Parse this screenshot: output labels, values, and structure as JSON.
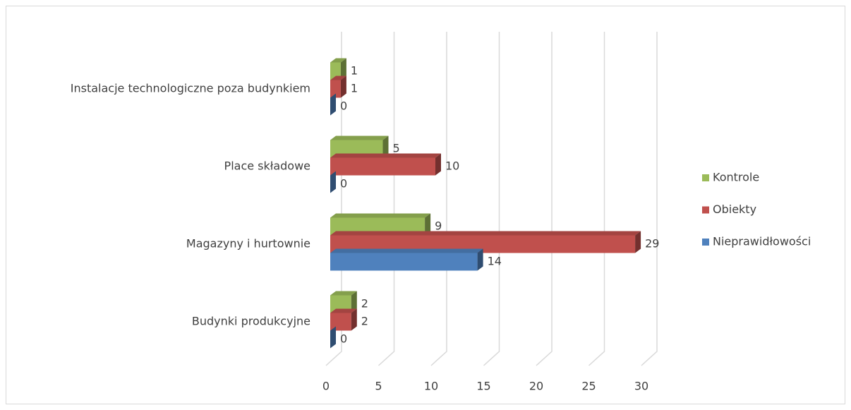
{
  "chart_data": {
    "type": "bar3d_horizontal",
    "categories": [
      "Budynki produkcyjne",
      "Magazyny i hurtownie",
      "Place składowe",
      "Instalacje technologiczne poza budynkiem"
    ],
    "series": [
      {
        "name": "Kontrole",
        "color": "#9bbb59",
        "values": [
          2,
          9,
          5,
          1
        ]
      },
      {
        "name": "Obiekty",
        "color": "#c0504d",
        "values": [
          2,
          29,
          10,
          1
        ]
      },
      {
        "name": "Nieprawidłowości",
        "color": "#4f81bd",
        "values": [
          0,
          14,
          0,
          0
        ]
      }
    ],
    "xlim": [
      0,
      30
    ],
    "xticks": [
      0,
      5,
      10,
      15,
      20,
      25,
      30
    ],
    "grid": true,
    "legend": "right"
  }
}
